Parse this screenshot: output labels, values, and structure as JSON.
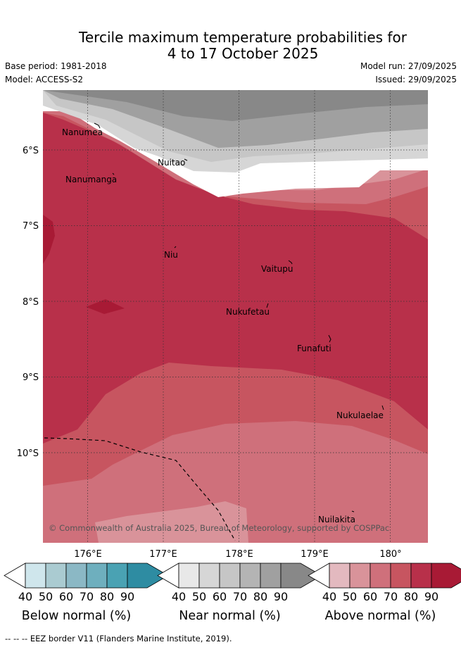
{
  "title": {
    "line1": "Tercile maximum temperature probabilities for",
    "line2": "4 to 17 October 2025"
  },
  "meta": {
    "base_period": "Base period: 1981-2018",
    "model": "Model: ACCESS-S2",
    "model_run": "Model run: 27/09/2025",
    "issued": "Issued: 29/09/2025"
  },
  "map": {
    "lat_ticks": [
      "6°S",
      "7°S",
      "8°S",
      "9°S",
      "10°S"
    ],
    "lon_ticks": [
      "176°E",
      "177°E",
      "178°E",
      "179°E",
      "180°"
    ],
    "places": [
      "Nanumea",
      "Nuitao",
      "Nanumanga",
      "Niu",
      "Vaitupu",
      "Nukufetau",
      "Funafuti",
      "Nukulaelae",
      "Nuilakita"
    ],
    "copyright": "© Commonwealth of Australia 2025, Bureau of Meteorology, supported by COSPPac"
  },
  "colorbars": [
    {
      "title": "Below normal (%)",
      "ticks": [
        "40",
        "50",
        "60",
        "70",
        "80",
        "90"
      ],
      "colors": [
        "#cfe6ec",
        "#aacbd1",
        "#8bb8c5",
        "#6eafbe",
        "#4aa2b3",
        "#2e8ca2"
      ]
    },
    {
      "title": "Near normal (%)",
      "ticks": [
        "40",
        "50",
        "60",
        "70",
        "80",
        "90"
      ],
      "colors": [
        "#e8e8e8",
        "#d6d6d6",
        "#c6c6c6",
        "#b4b4b4",
        "#a0a0a0",
        "#888888"
      ]
    },
    {
      "title": "Above normal (%)",
      "ticks": [
        "40",
        "50",
        "60",
        "70",
        "80",
        "90"
      ],
      "colors": [
        "#e3b9bf",
        "#d9939a",
        "#cf707b",
        "#c75560",
        "#b8304a",
        "#a81a35"
      ]
    }
  ],
  "footer": "--  --  -- EEZ border V11 (Flanders Marine Institute, 2019)."
}
